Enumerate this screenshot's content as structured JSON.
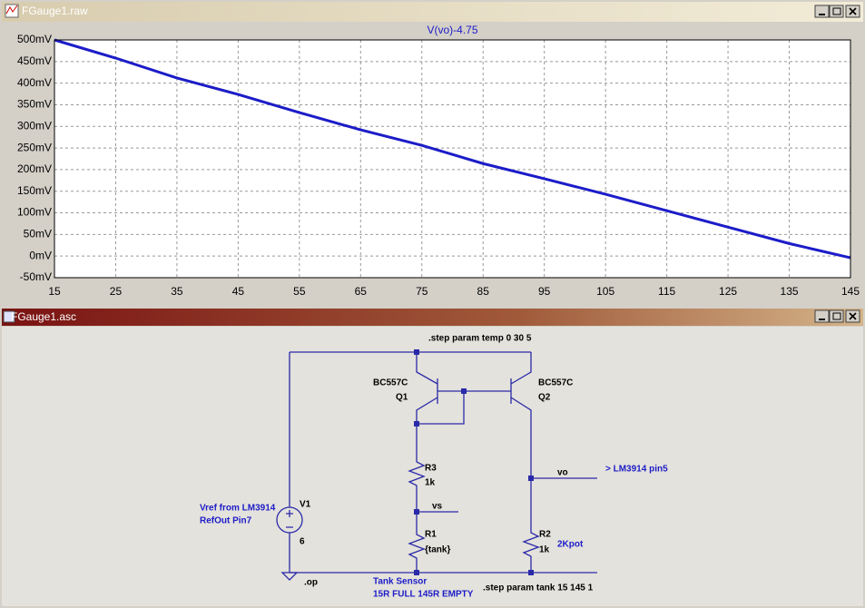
{
  "windows": [
    {
      "title": "FGauge1.raw"
    },
    {
      "title": "FGauge1.asc"
    }
  ],
  "chart_data": {
    "type": "line",
    "title": "V(vo)-4.75",
    "x": [
      15,
      25,
      35,
      45,
      55,
      65,
      75,
      85,
      95,
      105,
      115,
      125,
      135,
      145
    ],
    "series": [
      {
        "color": "#1c1cc8",
        "values": [
          500,
          458,
          412,
          374,
          332,
          292,
          256,
          214,
          179,
          143,
          105,
          67,
          29,
          -4
        ]
      }
    ],
    "xlim": [
      15,
      145
    ],
    "xticks": [
      15,
      25,
      35,
      45,
      55,
      65,
      75,
      85,
      95,
      105,
      115,
      125,
      135,
      145
    ],
    "ylim": [
      -50,
      500
    ],
    "yticks": [
      {
        "value": -50,
        "label": "-50mV"
      },
      {
        "value": 0,
        "label": "0mV"
      },
      {
        "value": 50,
        "label": "50mV"
      },
      {
        "value": 100,
        "label": "100mV"
      },
      {
        "value": 150,
        "label": "150mV"
      },
      {
        "value": 200,
        "label": "200mV"
      },
      {
        "value": 250,
        "label": "250mV"
      },
      {
        "value": 300,
        "label": "300mV"
      },
      {
        "value": 350,
        "label": "350mV"
      },
      {
        "value": 400,
        "label": "400mV"
      },
      {
        "value": 450,
        "label": "450mV"
      },
      {
        "value": 500,
        "label": "500mV"
      }
    ],
    "grid": true
  },
  "schematic": {
    "labels": [
      ".step param temp 0 30 5",
      "BC557C",
      "Q1",
      "BC557C",
      "Q2",
      "R3",
      "1k",
      "vs",
      "R1",
      "{tank}",
      "vo",
      "> LM3914 pin5",
      "V1",
      "6",
      "Vref from LM3914",
      "RefOut  Pin7",
      "R2",
      "1k",
      "2Kpot",
      ".op",
      "Tank Sensor",
      "15R FULL 145R EMPTY",
      ".step param tank 15 145 1"
    ]
  }
}
